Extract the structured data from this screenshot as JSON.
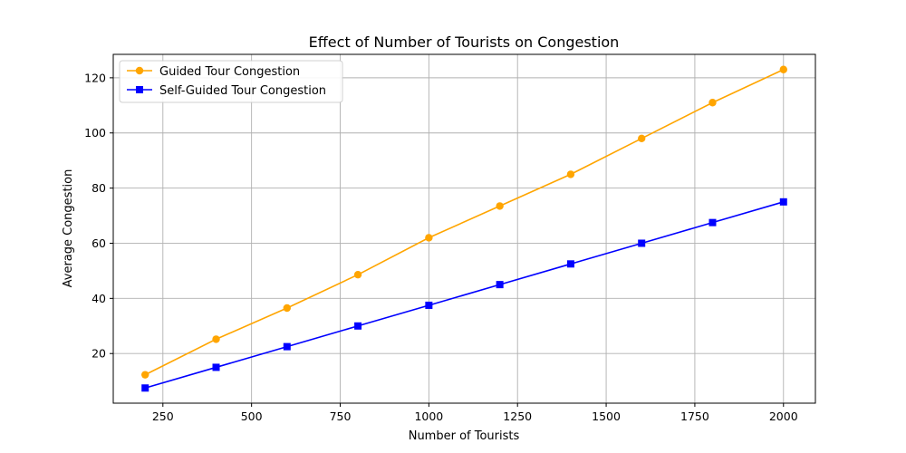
{
  "chart_data": {
    "type": "line",
    "title": "Effect of Number of Tourists on Congestion",
    "xlabel": "Number of Tourists",
    "ylabel": "Average Congestion",
    "x": [
      200,
      400,
      600,
      800,
      1000,
      1200,
      1400,
      1600,
      1800,
      2000
    ],
    "xlim": [
      110,
      2090
    ],
    "ylim": [
      2.0,
      128.5
    ],
    "xticks": [
      250,
      500,
      750,
      1000,
      1250,
      1500,
      1750,
      2000
    ],
    "yticks": [
      20,
      40,
      60,
      80,
      100,
      120
    ],
    "grid": true,
    "legend_position": "top-left",
    "series": [
      {
        "name": "Guided Tour Congestion",
        "values": [
          12.3,
          25.2,
          36.5,
          48.6,
          62.0,
          73.5,
          85.0,
          98.0,
          111.0,
          123.0
        ],
        "color": "#ffa500",
        "marker": "circle"
      },
      {
        "name": "Self-Guided Tour Congestion",
        "values": [
          7.5,
          15.0,
          22.5,
          30.0,
          37.5,
          45.0,
          52.5,
          60.0,
          67.5,
          75.0
        ],
        "color": "#0000ff",
        "marker": "square"
      }
    ]
  }
}
